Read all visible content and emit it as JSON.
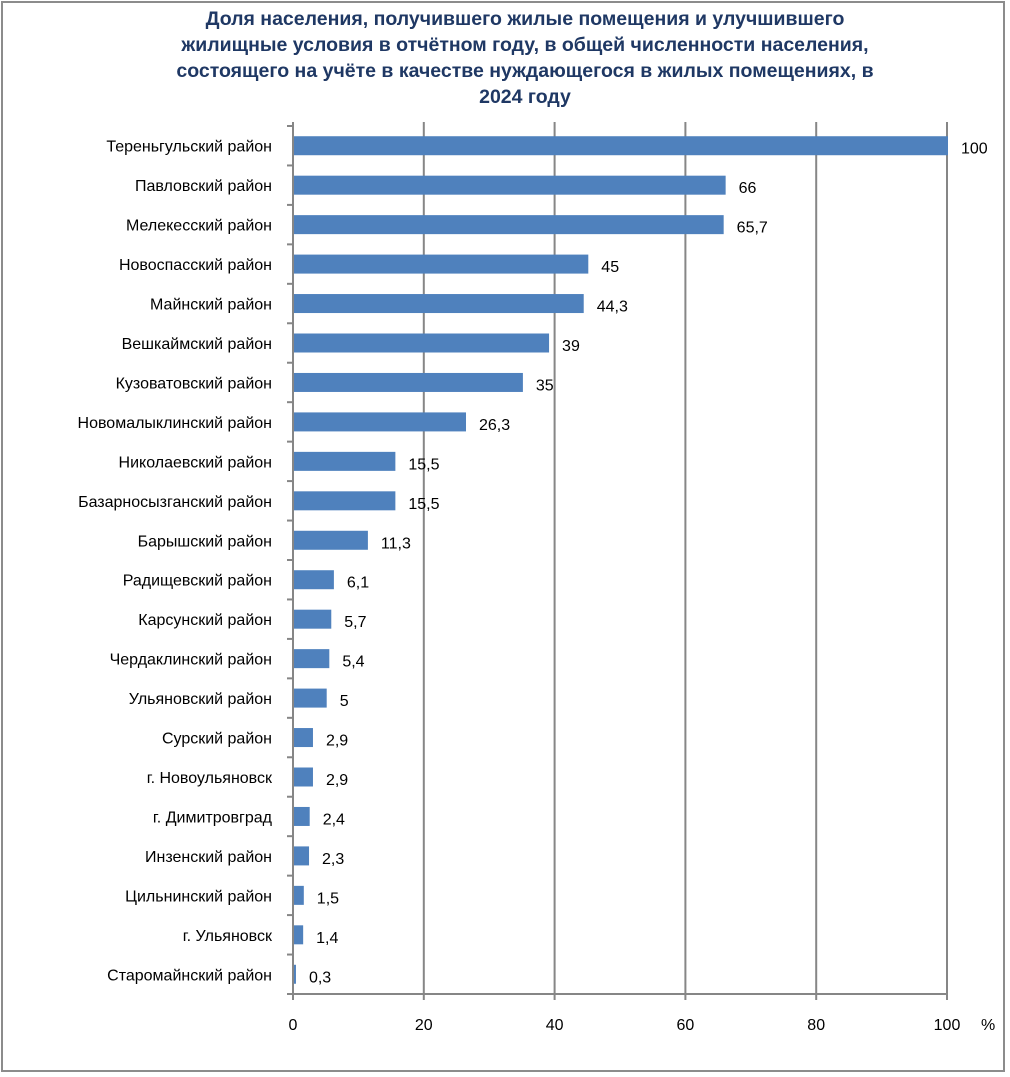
{
  "chart_data": {
    "type": "bar",
    "orientation": "horizontal",
    "title": "Доля населения, получившего жилые помещения и улучшившего жилищные условия в отчётном году, в общей численности населения, состоящего на учёте в качестве нуждающегося в жилых помещениях, в 2024 году",
    "title_lines": [
      "Доля населения, получившего жилые помещения и улучшившего",
      "жилищные условия в отчётном году, в общей численности населения,",
      "состоящего на учёте в качестве нуждающегося в жилых помещениях, в",
      "2024 году"
    ],
    "categories": [
      "Тереньгульский район",
      "Павловский район",
      "Мелекесский район",
      "Новоспасский район",
      "Майнский район",
      "Вешкаймский район",
      "Кузоватовский район",
      "Новомалыклинский район",
      "Николаевский район",
      "Базарносызганский район",
      "Барышский район",
      "Радищевский район",
      "Карсунский район",
      "Чердаклинский район",
      "Ульяновский район",
      "Сурский район",
      "г. Новоульяновск",
      "г. Димитровград",
      "Инзенский район",
      "Цильнинский район",
      "г. Ульяновск",
      "Старомайнский район"
    ],
    "values": [
      100,
      66,
      65.7,
      45,
      44.3,
      39,
      35,
      26.3,
      15.5,
      15.5,
      11.3,
      6.1,
      5.7,
      5.4,
      5,
      2.9,
      2.9,
      2.4,
      2.3,
      1.5,
      1.4,
      0.3
    ],
    "value_labels": [
      "100",
      "66",
      "65,7",
      "45",
      "44,3",
      "39",
      "35",
      "26,3",
      "15,5",
      "15,5",
      "11,3",
      "6,1",
      "5,7",
      "5,4",
      "5",
      "2,9",
      "2,9",
      "2,4",
      "2,3",
      "1,5",
      "1,4",
      "0,3"
    ],
    "xlabel": "%",
    "ylabel": "",
    "xlim": [
      0,
      100
    ],
    "x_ticks": [
      0,
      20,
      40,
      60,
      80,
      100
    ],
    "x_tick_labels": [
      "0",
      "20",
      "40",
      "60",
      "80",
      "100"
    ],
    "grid": "vertical",
    "legend": "none",
    "bar_color": "#4f81bd",
    "title_color": "#1f3864",
    "grid_color": "#868686"
  }
}
